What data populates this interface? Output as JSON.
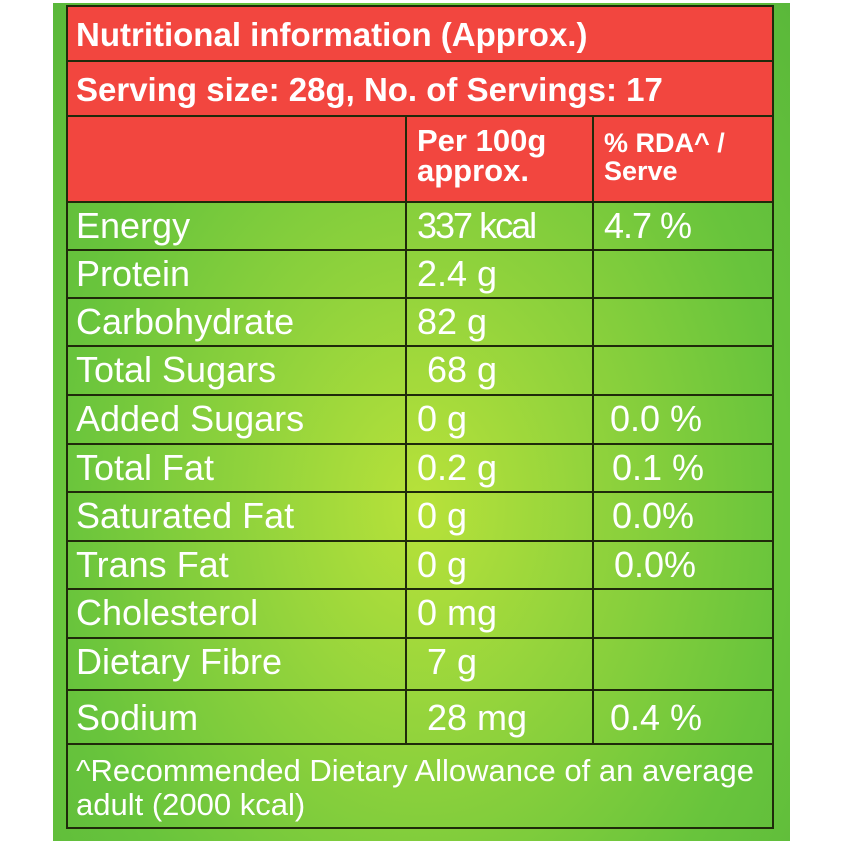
{
  "label": {
    "title": "Nutritional information (Approx.)",
    "serving": "Serving size: 28g, No. of Servings: 17",
    "columns": [
      "",
      "Per 100g approx.",
      "% RDA^ / Serve"
    ],
    "rows": [
      {
        "name": "Energy",
        "per100g": "337 kcal",
        "rda": "4.7 %"
      },
      {
        "name": "Protein",
        "per100g": "2.4 g",
        "rda": ""
      },
      {
        "name": "Carbohydrate",
        "per100g": "82 g",
        "rda": ""
      },
      {
        "name": "Total Sugars",
        "per100g": "68 g",
        "rda": ""
      },
      {
        "name": "Added Sugars",
        "per100g": "0 g",
        "rda": "0.0 %"
      },
      {
        "name": "Total Fat",
        "per100g": "0.2 g",
        "rda": "0.1 %"
      },
      {
        "name": "Saturated Fat",
        "per100g": "0 g",
        "rda": "0.0%"
      },
      {
        "name": "Trans Fat",
        "per100g": "0 g",
        "rda": "0.0%"
      },
      {
        "name": "Cholesterol",
        "per100g": "0 mg",
        "rda": ""
      },
      {
        "name": "Dietary Fibre",
        "per100g": "7 g",
        "rda": ""
      },
      {
        "name": "Sodium",
        "per100g": "28 mg",
        "rda": "0.4 %"
      }
    ],
    "footnote": "^Recommended Dietary Allowance of an average adult (2000 kcal)"
  },
  "colors": {
    "header_red": "#f2463f",
    "background_green": "#8fd23c",
    "border": "#1f2a0a",
    "text": "#ffffff"
  }
}
